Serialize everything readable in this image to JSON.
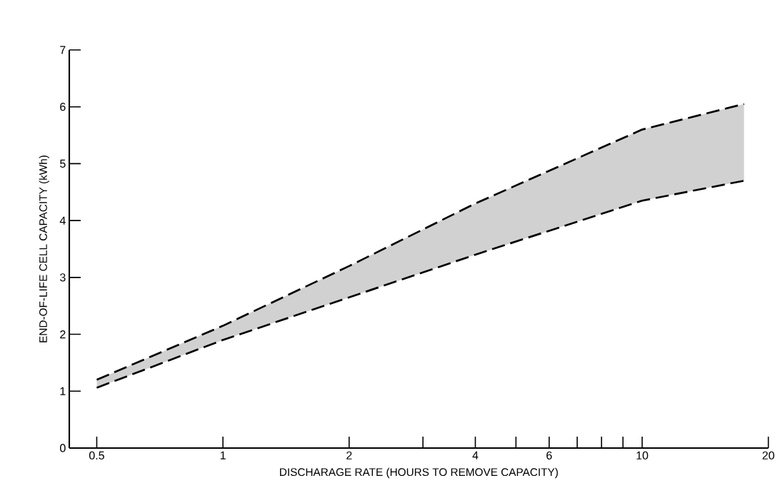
{
  "chart_data": {
    "type": "line",
    "xlabel": "DISCHARAGE RATE (HOURS TO REMOVE CAPACITY)",
    "ylabel": "END-OF-LIFE CELL CAPACITY (kWh)",
    "log": "x",
    "x": [
      0.5,
      1,
      2,
      4,
      10,
      17.5
    ],
    "series": [
      {
        "color": "#000000",
        "values": [
          1.2,
          2.15,
          3.2,
          4.3,
          5.6,
          6.05
        ],
        "upper": [
          1.2,
          2.15,
          3.2,
          4.3,
          5.6,
          6.05
        ],
        "lower": [
          1.06,
          1.9,
          2.65,
          3.4,
          4.35,
          4.7
        ]
      },
      {
        "color": "#000000",
        "values": [
          1.06,
          1.9,
          2.65,
          3.4,
          4.35,
          4.7
        ]
      }
    ],
    "xlim": [
      0.43,
      20
    ],
    "ylim": [
      0,
      7
    ],
    "xticks": [
      0.5,
      1,
      2,
      {
        "value": 3,
        "label": null
      },
      4,
      {
        "value": 5,
        "label": null
      },
      6,
      {
        "value": 7,
        "label": null
      },
      {
        "value": 8,
        "label": null
      },
      {
        "value": 9,
        "label": null
      },
      10,
      20
    ],
    "yticks": [
      0,
      1,
      2,
      3,
      4,
      5,
      6,
      7
    ],
    "line_style": "dashed",
    "grid": false
  }
}
